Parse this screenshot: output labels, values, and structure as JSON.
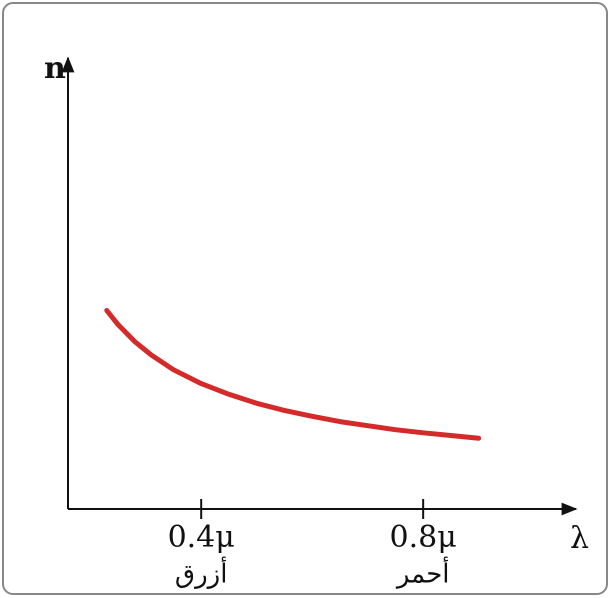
{
  "chart_data": {
    "type": "line",
    "ylabel": "n",
    "xlabel": "λ",
    "x": [
      0.23,
      0.25,
      0.28,
      0.31,
      0.35,
      0.4,
      0.45,
      0.5,
      0.55,
      0.6,
      0.65,
      0.7,
      0.75,
      0.8,
      0.85,
      0.9
    ],
    "series": [
      {
        "color": "#d42a2a",
        "values": [
          0.443,
          0.412,
          0.374,
          0.344,
          0.311,
          0.28,
          0.256,
          0.236,
          0.22,
          0.207,
          0.195,
          0.186,
          0.177,
          0.17,
          0.164,
          0.158
        ]
      }
    ],
    "xlim": [
      0.16,
      1.07
    ],
    "ylim": [
      0,
      1
    ],
    "xticks": [
      {
        "value": 0.4,
        "label": "0.4μ"
      },
      {
        "value": 0.8,
        "label": "0.8μ"
      }
    ],
    "annotations": [
      {
        "text": "أزرق",
        "x": 0.4
      },
      {
        "text": "أحمر",
        "x": 0.8
      }
    ],
    "grid": false
  }
}
